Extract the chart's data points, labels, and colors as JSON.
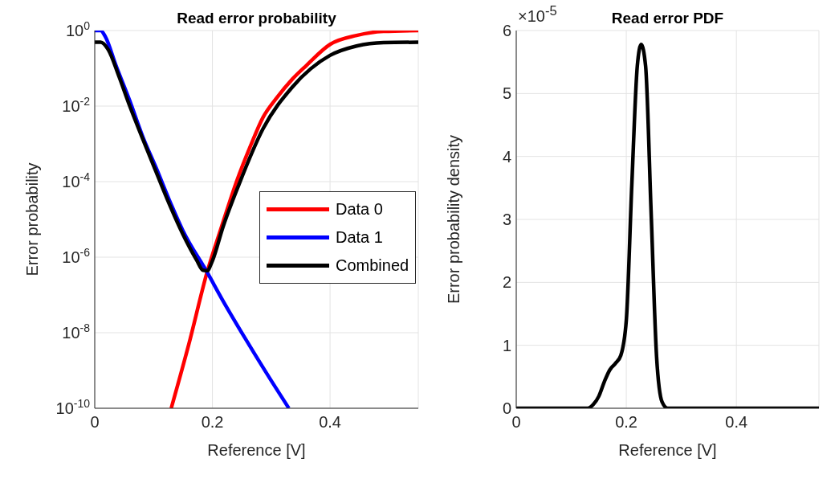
{
  "chart_data": [
    {
      "type": "line",
      "title": "Read error probability",
      "xlabel": "Reference [V]",
      "ylabel": "Error probability",
      "xlim": [
        0,
        0.55
      ],
      "xticks": [
        0,
        0.2,
        0.4
      ],
      "ylim": [
        1e-10,
        1
      ],
      "yticks": [
        {
          "value": 1,
          "label": "10$^{0}$"
        },
        {
          "value": 0.01,
          "label": "10$^{-2}$"
        },
        {
          "value": 0.0001,
          "label": "10$^{-4}$"
        },
        {
          "value": 1e-06,
          "label": "10$^{-6}$"
        },
        {
          "value": 1e-08,
          "label": "10$^{-8}$"
        },
        {
          "value": 1e-10,
          "label": "10$^{-10}$"
        }
      ],
      "log": "y",
      "grid": true,
      "legend": "right",
      "series": [
        {
          "name": "Data 0",
          "color": "#ff0000",
          "x": [
            0.13,
            0.16,
            0.191,
            0.215,
            0.241,
            0.265,
            0.286,
            0.31,
            0.336,
            0.36,
            0.4,
            0.445,
            0.491,
            0.55
          ],
          "values": [
            1e-10,
            5e-09,
            4e-07,
            6e-06,
            0.0001,
            0.0009,
            0.005,
            0.017,
            0.052,
            0.12,
            0.43,
            0.74,
            0.95,
            1
          ]
        },
        {
          "name": "Data 1",
          "color": "#0000ff",
          "x": [
            0,
            0.01,
            0.018,
            0.036,
            0.059,
            0.082,
            0.105,
            0.127,
            0.15,
            0.191,
            0.218,
            0.255,
            0.291,
            0.33
          ],
          "values": [
            1,
            1,
            0.69,
            0.12,
            0.0145,
            0.0015,
            0.00022,
            3.2e-05,
            5e-06,
            4e-07,
            7e-08,
            7.4e-09,
            9e-10,
            1e-10
          ]
        },
        {
          "name": "Combined",
          "color": "#000000",
          "x": [
            0,
            0.01,
            0.023,
            0.041,
            0.059,
            0.082,
            0.105,
            0.127,
            0.15,
            0.173,
            0.184,
            0.191,
            0.2,
            0.218,
            0.245,
            0.286,
            0.336,
            0.4,
            0.445,
            0.491,
            0.55
          ],
          "values": [
            0.49,
            0.49,
            0.31,
            0.062,
            0.0105,
            0.0013,
            0.00017,
            2.5e-05,
            4e-06,
            8.5e-07,
            4.5e-07,
            4.4e-07,
            8e-07,
            6.3e-06,
            8.3e-05,
            0.0025,
            0.032,
            0.22,
            0.39,
            0.48,
            0.49
          ]
        }
      ]
    },
    {
      "type": "line",
      "title": "Read error PDF",
      "xlabel": "Reference [V]",
      "ylabel": "Error probability density",
      "annotations": [
        "×10$^{-5}$"
      ],
      "xlim": [
        0,
        0.55
      ],
      "xticks": [
        0,
        0.2,
        0.4
      ],
      "ylim": [
        0,
        6
      ],
      "yticks": [
        0,
        1,
        2,
        3,
        4,
        5,
        6
      ],
      "grid": true,
      "series": [
        {
          "color": "#000000",
          "x": [
            0,
            0.13,
            0.14,
            0.15,
            0.16,
            0.17,
            0.18,
            0.19,
            0.2,
            0.21,
            0.22,
            0.227,
            0.235,
            0.245,
            0.255,
            0.265,
            0.275,
            0.55
          ],
          "values": [
            0,
            0,
            0.06,
            0.19,
            0.42,
            0.61,
            0.71,
            0.84,
            1.4,
            3.55,
            5.44,
            5.78,
            5.44,
            3.13,
            0.82,
            0.1,
            0,
            0
          ]
        }
      ]
    }
  ]
}
